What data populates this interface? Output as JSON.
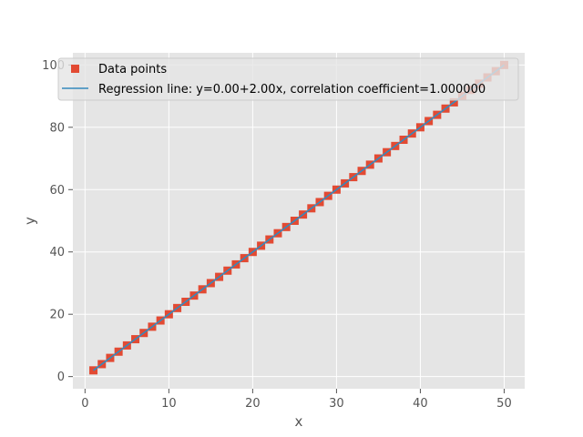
{
  "chart_data": {
    "type": "scatter",
    "title": "",
    "xlabel": "x",
    "ylabel": "y",
    "xlim": [
      -1.45,
      52.45
    ],
    "ylim": [
      -3.9,
      103.9
    ],
    "xticks": [
      0,
      10,
      20,
      30,
      40,
      50
    ],
    "yticks": [
      0,
      20,
      40,
      60,
      80,
      100
    ],
    "grid": true,
    "legend_position": "top-left",
    "colors": {
      "background": "#e5e5e5",
      "grid": "#ffffff",
      "points": "#e24a33",
      "line": "#348abd"
    },
    "series": [
      {
        "name": "Data points",
        "kind": "scatter",
        "marker": "square",
        "x": [
          1,
          2,
          3,
          4,
          5,
          6,
          7,
          8,
          9,
          10,
          11,
          12,
          13,
          14,
          15,
          16,
          17,
          18,
          19,
          20,
          21,
          22,
          23,
          24,
          25,
          26,
          27,
          28,
          29,
          30,
          31,
          32,
          33,
          34,
          35,
          36,
          37,
          38,
          39,
          40,
          41,
          42,
          43,
          44,
          45,
          46,
          47,
          48,
          49,
          50
        ],
        "y": [
          2,
          4,
          6,
          8,
          10,
          12,
          14,
          16,
          18,
          20,
          22,
          24,
          26,
          28,
          30,
          32,
          34,
          36,
          38,
          40,
          42,
          44,
          46,
          48,
          50,
          52,
          54,
          56,
          58,
          60,
          62,
          64,
          66,
          68,
          70,
          72,
          74,
          76,
          78,
          80,
          82,
          84,
          86,
          88,
          90,
          92,
          94,
          96,
          98,
          100
        ]
      },
      {
        "name": "Regression line: y=0.00+2.00x, correlation coefficient=1.000000",
        "kind": "line",
        "intercept": 0.0,
        "slope": 2.0,
        "x": [
          1,
          50
        ],
        "y": [
          2,
          100
        ]
      }
    ]
  }
}
